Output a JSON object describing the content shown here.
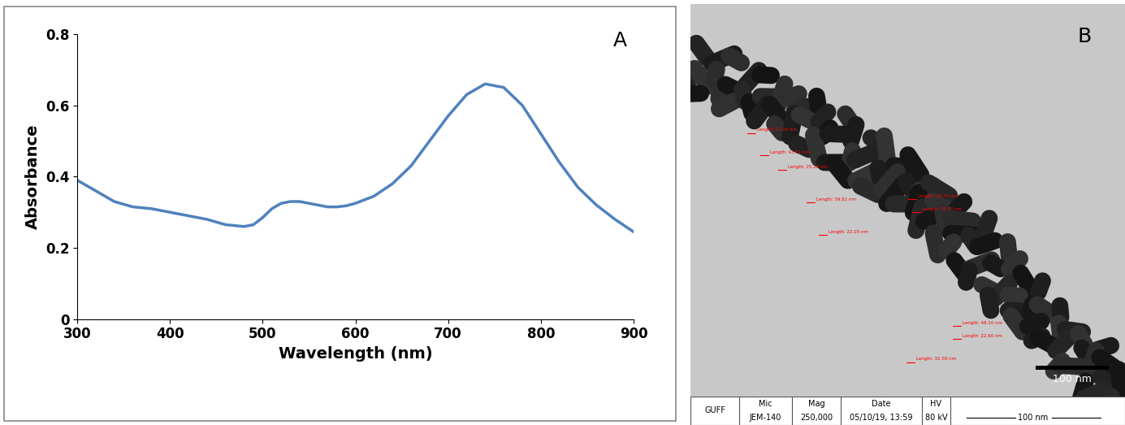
{
  "chart_data": {
    "type": "line",
    "panel": "A",
    "x_label": "Wavelength (nm)",
    "y_label": "Absorbance",
    "x": [
      300,
      320,
      340,
      360,
      380,
      400,
      420,
      440,
      460,
      480,
      490,
      500,
      510,
      520,
      530,
      540,
      550,
      560,
      570,
      580,
      590,
      600,
      620,
      640,
      660,
      680,
      700,
      720,
      740,
      760,
      780,
      800,
      820,
      840,
      860,
      880,
      900
    ],
    "values": [
      0.39,
      0.36,
      0.33,
      0.315,
      0.31,
      0.3,
      0.29,
      0.28,
      0.265,
      0.26,
      0.265,
      0.285,
      0.31,
      0.325,
      0.33,
      0.33,
      0.325,
      0.32,
      0.315,
      0.315,
      0.318,
      0.325,
      0.345,
      0.38,
      0.43,
      0.5,
      0.57,
      0.63,
      0.66,
      0.65,
      0.6,
      0.52,
      0.44,
      0.37,
      0.32,
      0.28,
      0.245
    ],
    "color": "#4f81bd",
    "xlim": [
      300,
      900
    ],
    "xticks": [
      300,
      400,
      500,
      600,
      700,
      800,
      900
    ],
    "ylim": [
      0,
      0.8
    ],
    "yticks": [
      0,
      0.2,
      0.4,
      0.6,
      0.8
    ],
    "grid": false
  },
  "image": {
    "panel": "B",
    "measurements": [
      "Length: 31.26 nm",
      "Length: 43.51 nm",
      "Length: 25.28 nm",
      "Length: 59.61 nm",
      "Length: 22.03 nm",
      "Length: 48.70 nm",
      "Length: 25.73 nm",
      "Length: 48.10 nm",
      "Length: 22.60 nm",
      "Length: 32.58 nm"
    ],
    "scale_bar": "100 nm",
    "info_bar": {
      "label": "GUFF",
      "columns": [
        {
          "header": "Mic",
          "value": "JEM-140"
        },
        {
          "header": "Mag",
          "value": "250,000"
        },
        {
          "header": "Date",
          "value": "05/10/19, 13:59"
        },
        {
          "header": "HV",
          "value": "80 kV"
        }
      ],
      "scale": "100 nm"
    }
  }
}
